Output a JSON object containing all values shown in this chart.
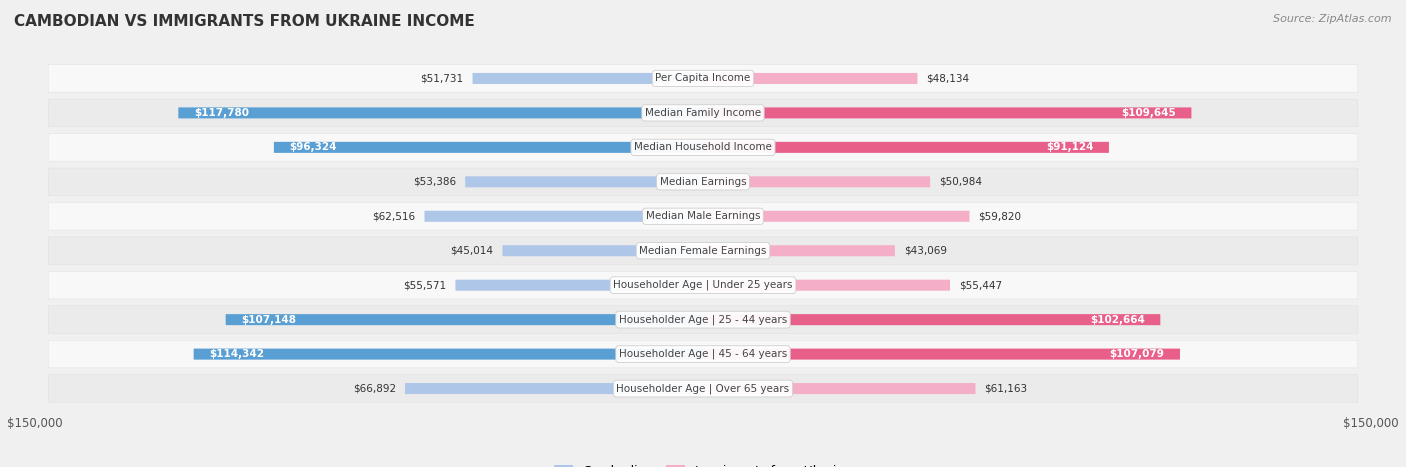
{
  "title": "CAMBODIAN VS IMMIGRANTS FROM UKRAINE INCOME",
  "source": "Source: ZipAtlas.com",
  "max_value": 150000,
  "categories": [
    "Per Capita Income",
    "Median Family Income",
    "Median Household Income",
    "Median Earnings",
    "Median Male Earnings",
    "Median Female Earnings",
    "Householder Age | Under 25 years",
    "Householder Age | 25 - 44 years",
    "Householder Age | 45 - 64 years",
    "Householder Age | Over 65 years"
  ],
  "cambodian_values": [
    51731,
    117780,
    96324,
    53386,
    62516,
    45014,
    55571,
    107148,
    114342,
    66892
  ],
  "ukraine_values": [
    48134,
    109645,
    91124,
    50984,
    59820,
    43069,
    55447,
    102664,
    107079,
    61163
  ],
  "cambodian_light": "#aec6e8",
  "cambodian_dark": "#5a9fd4",
  "ukraine_light": "#f4aec8",
  "ukraine_dark": "#e8608a",
  "row_light": "#f8f8f8",
  "row_dark": "#ebebeb",
  "bg_color": "#f0f0f0",
  "label_text_color": "#444444",
  "dark_value_threshold": 80000,
  "title_fontsize": 11,
  "source_fontsize": 8,
  "axis_fontsize": 8.5,
  "cat_label_fontsize": 7.5,
  "value_fontsize": 7.5,
  "legend_fontsize": 9
}
